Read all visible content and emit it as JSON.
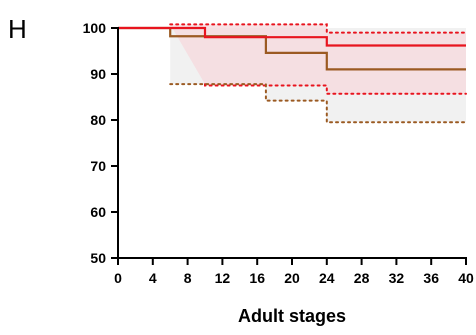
{
  "panel_label": "H",
  "chart_data": {
    "type": "line",
    "step": true,
    "title": "",
    "xlabel": "Adult stages",
    "ylabel": "",
    "xlim": [
      0,
      40
    ],
    "ylim": [
      50,
      100
    ],
    "xticks": [
      0,
      4,
      8,
      12,
      16,
      20,
      24,
      28,
      32,
      36,
      40
    ],
    "yticks": [
      50,
      60,
      70,
      80,
      90,
      100
    ],
    "legend": "none",
    "grid": false,
    "series": [
      {
        "color": "#e8141e",
        "x": [
          0,
          10,
          10,
          24,
          24,
          40
        ],
        "y": [
          100,
          100,
          98,
          98,
          96.2,
          96.2
        ],
        "ci_upper": {
          "x": [
            6,
            40
          ],
          "y": [
            100.8,
            100.8
          ],
          "x_steps": [
            6,
            24,
            24,
            40
          ],
          "y_steps": [
            100.8,
            100.8,
            99,
            99
          ]
        },
        "ci_lower": {
          "x_steps": [
            10,
            10,
            24,
            24,
            40
          ],
          "y_steps": [
            87.8,
            87.5,
            87.5,
            85.7,
            85.7
          ]
        },
        "band_color": "#f6d8dc"
      },
      {
        "color": "#9b5a22",
        "x": [
          0,
          6,
          6,
          17,
          17,
          24,
          24,
          40
        ],
        "y": [
          100,
          100,
          98.2,
          98.2,
          94.6,
          94.6,
          91,
          91
        ],
        "ci_upper": {
          "x_steps": [
            6,
            40
          ],
          "y_steps": [
            100,
            100
          ]
        },
        "ci_lower": {
          "x_steps": [
            6,
            17,
            17,
            24,
            24,
            40
          ],
          "y_steps": [
            87.8,
            87.8,
            84.2,
            84.2,
            79.5,
            79.5
          ]
        },
        "band_color": "#efefef"
      }
    ]
  }
}
